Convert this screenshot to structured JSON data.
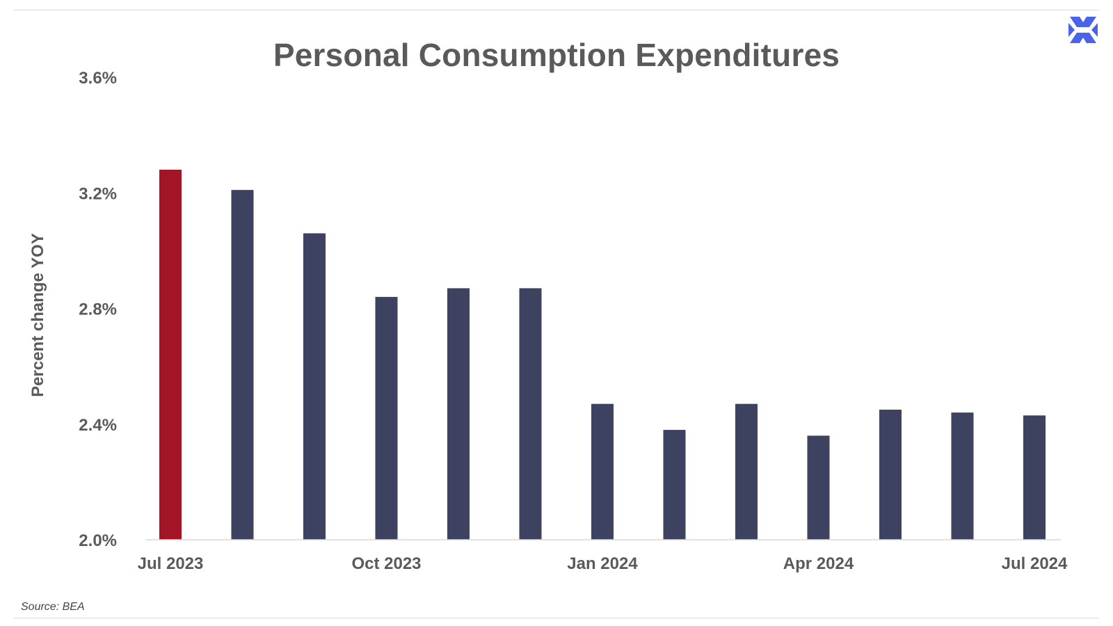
{
  "title": "Personal Consumption Expenditures",
  "source": "Source:  BEA",
  "logo_icon": "x-brand-icon",
  "colors": {
    "highlight": "#a31526",
    "bar": "#3d4261",
    "text": "#5a5a5a",
    "logo": "#4a63e8"
  },
  "chart_data": {
    "type": "bar",
    "title": "Personal Consumption Expenditures",
    "xlabel": "",
    "ylabel": "Percent change YOY",
    "ylim": [
      2.0,
      3.6
    ],
    "yticks": [
      "3.6%",
      "3.2%",
      "2.8%",
      "2.4%",
      "2.0%"
    ],
    "ytick_values": [
      3.6,
      3.2,
      2.8,
      2.4,
      2.0
    ],
    "categories": [
      "Jul 2023",
      "Aug 2023",
      "Sep 2023",
      "Oct 2023",
      "Nov 2023",
      "Dec 2023",
      "Jan 2024",
      "Feb 2024",
      "Mar 2024",
      "Apr 2024",
      "May 2024",
      "Jun 2024",
      "Jul 2024"
    ],
    "xtick_labels": [
      {
        "label": "Jul 2023",
        "index": 0
      },
      {
        "label": "Oct 2023",
        "index": 3
      },
      {
        "label": "Jan 2024",
        "index": 6
      },
      {
        "label": "Apr 2024",
        "index": 9
      },
      {
        "label": "Jul 2024",
        "index": 12
      }
    ],
    "values": [
      3.28,
      3.21,
      3.06,
      2.84,
      2.87,
      2.87,
      2.47,
      2.38,
      2.47,
      2.36,
      2.45,
      2.44,
      2.43
    ],
    "highlight_index": 0,
    "grid": false,
    "legend": "none"
  }
}
